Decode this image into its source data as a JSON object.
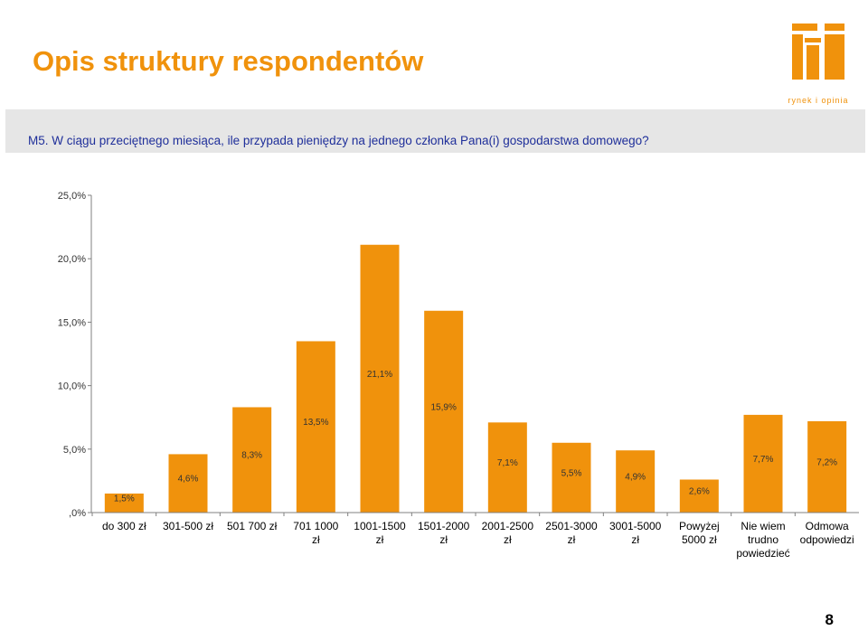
{
  "slide": {
    "title": "Opis struktury respondentów",
    "subtitle": "M5. W ciągu przeciętnego miesiąca, ile przypada pieniędzy na jednego  członka Pana(i) gospodarstwa domowego?",
    "page_number": "8"
  },
  "logo": {
    "name": "arc",
    "tagline": "rynek i opinia",
    "icon": "lighthouse-logo-icon"
  },
  "colors": {
    "title": "#f0920c",
    "bar": "#f0920c",
    "subtitle": "#1f2f9a",
    "banner": "#e6e6e6"
  },
  "chart_data": {
    "type": "bar",
    "categories": [
      [
        "do 300 zł"
      ],
      [
        "301-500 zł"
      ],
      [
        "501  700 zł"
      ],
      [
        "701  1000",
        "zł"
      ],
      [
        "1001-1500",
        "zł"
      ],
      [
        "1501-2000",
        "zł"
      ],
      [
        "2001-2500",
        "zł"
      ],
      [
        "2501-3000",
        "zł"
      ],
      [
        "3001-5000",
        "zł"
      ],
      [
        "Powyżej",
        "5000 zł"
      ],
      [
        "Nie wiem",
        "trudno",
        "powiedzieć"
      ],
      [
        "Odmowa",
        "odpowiedzi"
      ]
    ],
    "values": [
      1.5,
      4.6,
      8.3,
      13.5,
      21.1,
      15.9,
      7.1,
      5.5,
      4.9,
      2.6,
      7.7,
      7.2
    ],
    "data_labels": [
      "1,5%",
      "4,6%",
      "8,3%",
      "13,5%",
      "21,1%",
      "15,9%",
      "7,1%",
      "5,5%",
      "4,9%",
      "2,6%",
      "7,7%",
      "7,2%"
    ],
    "y_ticks": [
      0,
      5,
      10,
      15,
      20,
      25
    ],
    "y_tick_labels": [
      ",0%",
      "5,0%",
      "10,0%",
      "15,0%",
      "20,0%",
      "25,0%"
    ],
    "ylim": [
      0,
      25
    ],
    "grid": false,
    "legend": "none"
  }
}
